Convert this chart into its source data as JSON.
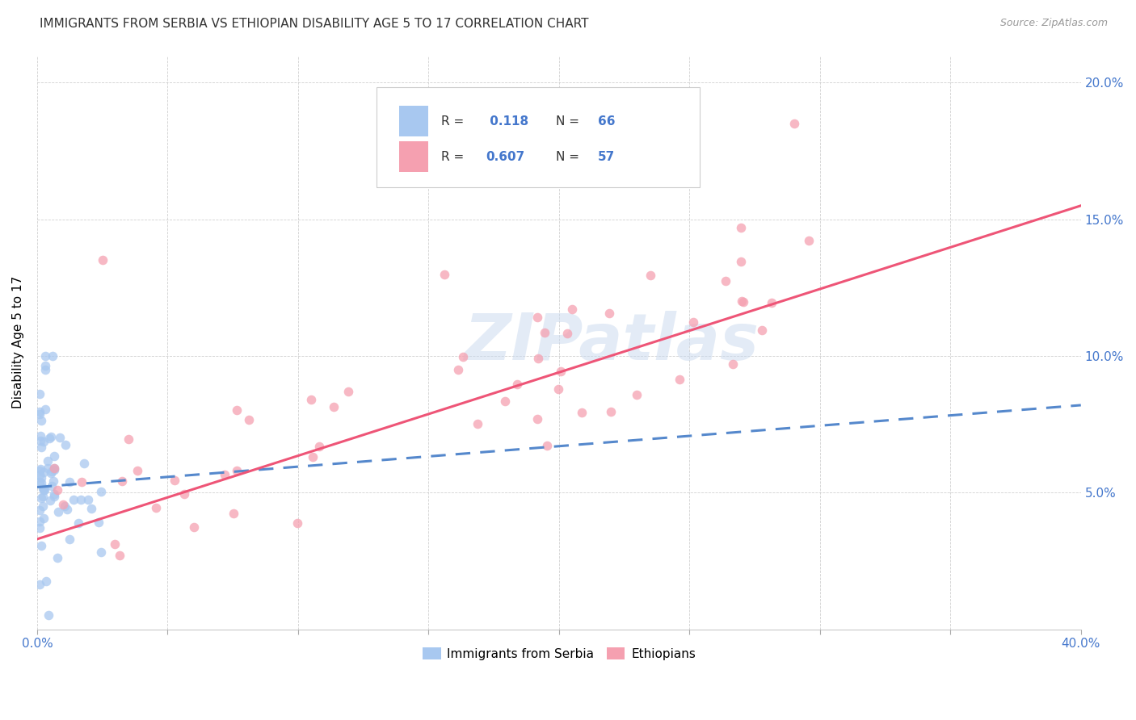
{
  "title": "IMMIGRANTS FROM SERBIA VS ETHIOPIAN DISABILITY AGE 5 TO 17 CORRELATION CHART",
  "source": "Source: ZipAtlas.com",
  "ylabel": "Disability Age 5 to 17",
  "xlim": [
    0.0,
    0.4
  ],
  "ylim": [
    0.0,
    0.21
  ],
  "xtick_positions": [
    0.0,
    0.05,
    0.1,
    0.15,
    0.2,
    0.25,
    0.3,
    0.35,
    0.4
  ],
  "xticklabels": [
    "0.0%",
    "",
    "",
    "",
    "",
    "",
    "",
    "",
    "40.0%"
  ],
  "ytick_positions": [
    0.0,
    0.05,
    0.1,
    0.15,
    0.2
  ],
  "yticklabels": [
    "",
    "5.0%",
    "10.0%",
    "15.0%",
    "20.0%"
  ],
  "watermark": "ZIPatlas",
  "serbia_R": 0.118,
  "serbia_N": 66,
  "ethiopia_R": 0.607,
  "ethiopia_N": 57,
  "serbia_color": "#a8c8f0",
  "ethiopia_color": "#f5a0b0",
  "serbia_line_color": "#5588cc",
  "serbia_line_dash": [
    6,
    4
  ],
  "ethiopia_line_color": "#ee5577",
  "background_color": "#ffffff",
  "grid_color": "#cccccc",
  "title_fontsize": 11,
  "tick_label_color": "#4477cc",
  "serbia_legend_label": "Immigrants from Serbia",
  "ethiopia_legend_label": "Ethiopians",
  "serbia_line_intercept": 0.052,
  "serbia_line_slope": 0.075,
  "ethiopia_line_intercept": 0.033,
  "ethiopia_line_slope": 0.305
}
